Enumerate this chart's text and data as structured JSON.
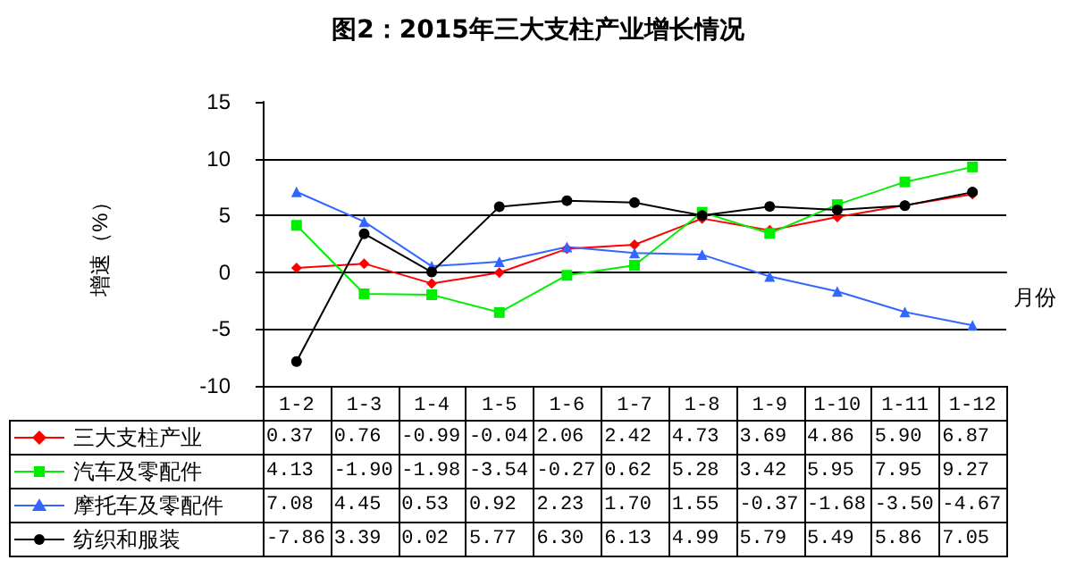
{
  "chart_data": {
    "type": "line",
    "title": "图2：2015年三大支柱产业增长情况",
    "xlabel": "月份",
    "ylabel": "增速（%）",
    "categories": [
      "1-2",
      "1-3",
      "1-4",
      "1-5",
      "1-6",
      "1-7",
      "1-8",
      "1-9",
      "1-10",
      "1-11",
      "1-12"
    ],
    "series": [
      {
        "name": "三大支柱产业",
        "color": "#ff0000",
        "marker": "diamond",
        "values": [
          0.37,
          0.76,
          -0.99,
          -0.04,
          2.06,
          2.42,
          4.73,
          3.69,
          4.86,
          5.9,
          6.87
        ],
        "value_labels": [
          "0.37",
          "0.76",
          "-0.99",
          "-0.04",
          "2.06",
          "2.42",
          "4.73",
          "3.69",
          "4.86",
          "5.90",
          "6.87"
        ]
      },
      {
        "name": "汽车及零配件",
        "color": "#00ee00",
        "marker": "square",
        "values": [
          4.13,
          -1.9,
          -1.98,
          -3.54,
          -0.27,
          0.62,
          5.28,
          3.42,
          5.95,
          7.95,
          9.27
        ],
        "value_labels": [
          "4.13",
          "-1.90",
          "-1.98",
          "-3.54",
          "-0.27",
          "0.62",
          "5.28",
          "3.42",
          "5.95",
          "7.95",
          "9.27"
        ]
      },
      {
        "name": "摩托车及零配件",
        "color": "#3366ff",
        "marker": "triangle",
        "values": [
          7.08,
          4.45,
          0.53,
          0.92,
          2.23,
          1.7,
          1.55,
          -0.37,
          -1.68,
          -3.5,
          -4.67
        ],
        "value_labels": [
          "7.08",
          "4.45",
          "0.53",
          "0.92",
          "2.23",
          "1.70",
          "1.55",
          "-0.37",
          "-1.68",
          "-3.50",
          "-4.67"
        ]
      },
      {
        "name": "纺织和服装",
        "color": "#000000",
        "marker": "circle",
        "values": [
          -7.86,
          3.39,
          0.02,
          5.77,
          6.3,
          6.13,
          4.99,
          5.79,
          5.49,
          5.86,
          7.05
        ],
        "value_labels": [
          "-7.86",
          "3.39",
          "0.02",
          "5.77",
          "6.30",
          "6.13",
          "4.99",
          "5.79",
          "5.49",
          "5.86",
          "7.05"
        ]
      }
    ],
    "ylim": [
      -10,
      15
    ],
    "yticks": [
      -10,
      -5,
      0,
      5,
      10,
      15
    ],
    "grid": "y",
    "legend": "bottom"
  }
}
